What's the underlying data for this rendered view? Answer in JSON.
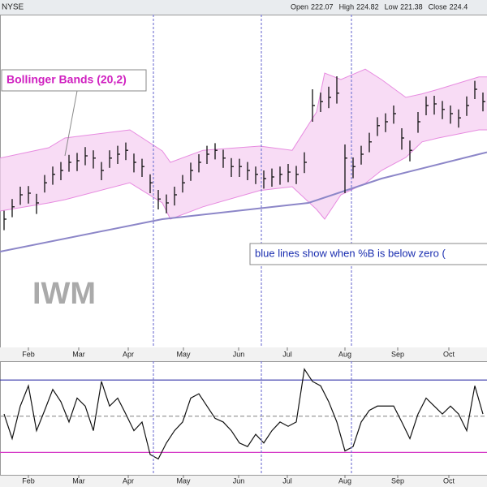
{
  "chart_data": {
    "type": "ohlc",
    "exchange": "NYSE",
    "quote": [
      {
        "label": "Open",
        "value": 222.07
      },
      {
        "label": "High",
        "value": 224.82
      },
      {
        "label": "Low",
        "value": 221.38
      },
      {
        "label": "Close",
        "value": 224.4
      }
    ],
    "symbol": "IWM",
    "annotations": [
      "Bollinger Bands (20,2)",
      "blue lines show when %B is below zero ("
    ],
    "xlim": [
      -0.5,
      59.5
    ],
    "xticks": [
      {
        "value": 3,
        "label": "Feb"
      },
      {
        "value": 9.2,
        "label": "Mar"
      },
      {
        "value": 15.3,
        "label": "Apr"
      },
      {
        "value": 22.1,
        "label": "May"
      },
      {
        "value": 28.9,
        "label": "Jun"
      },
      {
        "value": 34.9,
        "label": "Jul"
      },
      {
        "value": 42,
        "label": "Aug"
      },
      {
        "value": 48.5,
        "label": "Sep"
      },
      {
        "value": 54.8,
        "label": "Oct"
      }
    ],
    "signal_lines": [
      18.4,
      31.7,
      42.8
    ],
    "signal_color": "#7b7bd6",
    "ylim": [
      180.75,
      232
    ],
    "price_color": "#111111",
    "close": [
      200.5,
      202.4,
      204.25,
      204.5,
      203,
      206.1,
      207.4,
      208,
      209.25,
      209.5,
      210.25,
      209.9,
      208,
      209.9,
      210.5,
      211.1,
      209.25,
      208.6,
      206.1,
      203.6,
      203,
      204.25,
      206.1,
      208,
      209.25,
      210.5,
      211.1,
      209.9,
      208.6,
      208.6,
      208,
      207.4,
      206.75,
      207,
      207.4,
      207.75,
      207.4,
      209.25,
      218,
      218.6,
      219.25,
      219.9,
      209.9,
      208.6,
      210.5,
      212.4,
      214.9,
      215.5,
      216.75,
      213,
      211.1,
      215.5,
      218,
      218.25,
      217.4,
      216.75,
      216.1,
      218,
      220.5,
      218.6
    ],
    "high": [
      201.8,
      203.6,
      205.5,
      205.6,
      204.4,
      207.3,
      208.6,
      209.3,
      210.4,
      210.7,
      211.6,
      211.1,
      209.3,
      211.1,
      211.8,
      212.3,
      210.6,
      209.8,
      207.4,
      205,
      204.3,
      205.5,
      207.3,
      209.2,
      210.5,
      211.8,
      212.2,
      211.2,
      209.9,
      209.8,
      209.3,
      208.6,
      208,
      208.3,
      208.6,
      209,
      208.7,
      210.8,
      220.5,
      220,
      220.9,
      222.5,
      212,
      210,
      211.8,
      213.8,
      216.2,
      216.8,
      218,
      214.5,
      212.6,
      217,
      219.4,
      219.5,
      218.7,
      218,
      217.4,
      219.4,
      221.8,
      220
    ],
    "low": [
      198.8,
      200.8,
      202.7,
      202.9,
      201.3,
      204.6,
      205.8,
      206.5,
      207.8,
      207.9,
      208.8,
      208.3,
      206.5,
      208.4,
      209,
      209.6,
      207.7,
      207,
      204.5,
      202,
      201.4,
      202.6,
      204.6,
      206.4,
      207.7,
      209,
      209.7,
      208.4,
      207,
      207,
      206.5,
      205.9,
      205.2,
      205.5,
      205.8,
      206.2,
      205.9,
      207.6,
      215.5,
      217,
      217.6,
      218.3,
      204.5,
      206.8,
      208.9,
      210.8,
      213.3,
      213.9,
      215.2,
      211.2,
      209.4,
      213.8,
      216.5,
      216.6,
      215.9,
      215.2,
      214.6,
      216.4,
      219,
      217.1
    ],
    "bands": {
      "color": "#e78be0",
      "fill": "#f6d0f2",
      "x": [
        -0.5,
        5.5,
        7.5,
        15.5,
        19.5,
        20.5,
        24.5,
        31.5,
        35.5,
        38.5,
        39.5,
        41.5,
        44.5,
        46.5,
        49.5,
        51.5,
        53.5,
        58.5,
        59.5
      ],
      "upper": [
        209.9,
        211.5,
        213,
        214.25,
        211,
        209.25,
        211.1,
        211.75,
        211.1,
        217,
        223,
        222,
        223.6,
        222,
        219.25,
        219.8,
        220.5,
        222.4,
        222.4
      ],
      "lower": [
        201.75,
        203,
        203.5,
        206.1,
        203,
        200.5,
        202.4,
        204.9,
        205.5,
        202,
        200.5,
        204.25,
        206,
        208,
        210,
        212.4,
        213,
        214.25,
        214.25
      ]
    },
    "ma": {
      "color": "#8c86c8",
      "x": [
        -0.5,
        19.5,
        37.5,
        46.5,
        58.5,
        59.5
      ],
      "values": [
        195.5,
        200.5,
        203,
        206.75,
        210.5,
        210.8
      ]
    },
    "pctb": {
      "color": "#111111",
      "ylim": [
        -0.31,
        1.26
      ],
      "levels": [
        {
          "value": 0,
          "color": "#d63cc8"
        },
        {
          "value": 0.5,
          "color": "#999999"
        },
        {
          "value": 1,
          "color": "#3434a8"
        }
      ],
      "values": [
        0.53,
        0.19,
        0.64,
        0.92,
        0.3,
        0.58,
        0.87,
        0.7,
        0.42,
        0.75,
        0.64,
        0.3,
        0.98,
        0.64,
        0.75,
        0.53,
        0.3,
        0.42,
        -0.03,
        -0.09,
        0.13,
        0.3,
        0.42,
        0.75,
        0.81,
        0.64,
        0.47,
        0.42,
        0.3,
        0.13,
        0.08,
        0.25,
        0.13,
        0.3,
        0.42,
        0.36,
        0.42,
        1.15,
        0.98,
        0.92,
        0.7,
        0.42,
        0.02,
        0.08,
        0.42,
        0.58,
        0.64,
        0.64,
        0.64,
        0.42,
        0.19,
        0.53,
        0.75,
        0.64,
        0.53,
        0.64,
        0.53,
        0.3,
        0.92,
        0.53
      ]
    }
  }
}
